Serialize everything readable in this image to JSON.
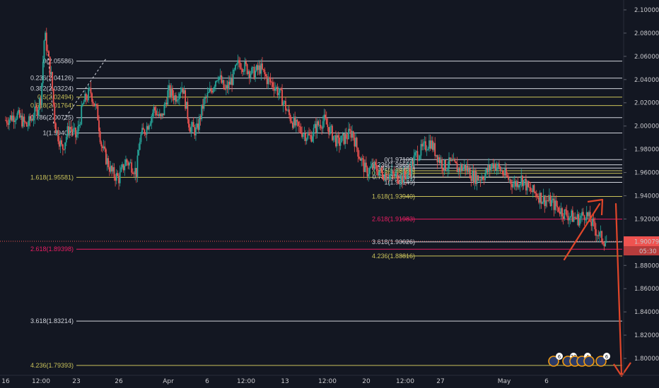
{
  "chart_data": {
    "type": "candlestick",
    "title": "",
    "colors": {
      "background": "#131722",
      "up": "#26a69a",
      "down": "#ef5350",
      "fib_white": "#d1d4dc",
      "fib_yellow": "#c9c25a",
      "fib_red": "#e91e63",
      "arrow": "#e0462a",
      "price_tag": "#ef5350",
      "axis_text": "#c8c8cc"
    },
    "y_axis": {
      "min": 1.79,
      "max": 2.105,
      "ticks": [
        "2.10000",
        "2.08000",
        "2.06000",
        "2.04000",
        "2.02000",
        "2.00000",
        "1.98000",
        "1.96000",
        "1.94000",
        "1.92000",
        "1.90000",
        "1.88000",
        "1.86000",
        "1.84000",
        "1.82000",
        "1.80000"
      ],
      "tick_values": [
        2.1,
        2.08,
        2.06,
        2.04,
        2.02,
        2.0,
        1.98,
        1.96,
        1.94,
        1.92,
        1.9,
        1.88,
        1.86,
        1.84,
        1.82,
        1.8
      ]
    },
    "x_axis": {
      "ticks": [
        "16",
        "12:00",
        "23",
        "26",
        "Apr",
        "6",
        "12:00",
        "13",
        "12:00",
        "20",
        "12:00",
        "27",
        "May",
        "6"
      ],
      "tick_index": [
        0,
        10,
        20,
        32,
        46,
        57,
        68,
        79,
        91,
        102,
        113,
        123,
        141,
        153
      ],
      "num_slots": 160
    },
    "last_price": {
      "label": "1.90079",
      "value": 1.90079,
      "countdown": "05:30"
    },
    "fib_left": [
      {
        "label": "0(2.05586)",
        "value": 2.05586,
        "color": "white"
      },
      {
        "label": "0.236(2.04126)",
        "value": 2.04126,
        "color": "white"
      },
      {
        "label": "0.382(2.03224)",
        "value": 2.03224,
        "color": "white"
      },
      {
        "label": "0.5(2.02494)",
        "value": 2.02494,
        "color": "yellow"
      },
      {
        "label": "0.618(2.01764)",
        "value": 2.01764,
        "color": "yellow"
      },
      {
        "label": "0.786(2.00725)",
        "value": 2.00725,
        "color": "white"
      },
      {
        "label": "1(1.99402)",
        "value": 1.99402,
        "color": "white"
      },
      {
        "label": "1.618(1.95581)",
        "value": 1.95581,
        "color": "yellow"
      },
      {
        "label": "2.618(1.89398)",
        "value": 1.89398,
        "color": "red"
      },
      {
        "label": "3.618(1.83214)",
        "value": 1.83214,
        "color": "white"
      },
      {
        "label": "4.236(1.79393)",
        "value": 1.79393,
        "color": "yellow"
      }
    ],
    "fib_right": [
      {
        "label": "0(1.97109)",
        "value": 1.97109,
        "color": "white"
      },
      {
        "label": "0.236(1.96659)",
        "value": 1.96659,
        "color": "white"
      },
      {
        "label": "0.382(1.96381)",
        "value": 1.96381,
        "color": "white"
      },
      {
        "label": "0.5(1.96156)",
        "value": 1.96156,
        "color": "yellow"
      },
      {
        "label": "0.618(1.95932)",
        "value": 1.95932,
        "color": "yellow"
      },
      {
        "label": "0.786(1.95611)",
        "value": 1.95611,
        "color": "white"
      },
      {
        "label": "1(1.95149)",
        "value": 1.95149,
        "color": "white"
      },
      {
        "label": "1.618(1.93940)",
        "value": 1.9394,
        "color": "yellow"
      },
      {
        "label": "2.618(1.91983)",
        "value": 1.91983,
        "color": "red"
      },
      {
        "label": "3.618(1.90026)",
        "value": 1.90026,
        "color": "white"
      },
      {
        "label": "4.236(1.88816)",
        "value": 1.88816,
        "color": "yellow"
      }
    ],
    "event_badges": [
      "6",
      "23",
      "4",
      "6"
    ],
    "price_path": [
      [
        0,
        2.005
      ],
      [
        3,
        2.01
      ],
      [
        6,
        2.0
      ],
      [
        9,
        2.015
      ],
      [
        10,
        2.025
      ],
      [
        11,
        2.08
      ],
      [
        12,
        2.06
      ],
      [
        13,
        2.04
      ],
      [
        14,
        2.0
      ],
      [
        16,
        1.98
      ],
      [
        18,
        2.0
      ],
      [
        20,
        1.99
      ],
      [
        22,
        2.02
      ],
      [
        24,
        2.03
      ],
      [
        26,
        2.01
      ],
      [
        27,
        1.985
      ],
      [
        28,
        1.975
      ],
      [
        30,
        1.96
      ],
      [
        32,
        1.955
      ],
      [
        34,
        1.97
      ],
      [
        36,
        1.965
      ],
      [
        37,
        1.96
      ],
      [
        38,
        1.99
      ],
      [
        40,
        2.0
      ],
      [
        42,
        2.015
      ],
      [
        44,
        2.005
      ],
      [
        46,
        2.03
      ],
      [
        48,
        2.025
      ],
      [
        50,
        2.035
      ],
      [
        52,
        2.0
      ],
      [
        54,
        1.995
      ],
      [
        56,
        2.02
      ],
      [
        58,
        2.03
      ],
      [
        60,
        2.045
      ],
      [
        62,
        2.03
      ],
      [
        64,
        2.04
      ],
      [
        66,
        2.055
      ],
      [
        68,
        2.05
      ],
      [
        70,
        2.045
      ],
      [
        72,
        2.05
      ],
      [
        74,
        2.04
      ],
      [
        76,
        2.035
      ],
      [
        78,
        2.025
      ],
      [
        80,
        2.01
      ],
      [
        82,
        2.0
      ],
      [
        84,
        1.995
      ],
      [
        86,
        1.99
      ],
      [
        88,
        2.0
      ],
      [
        90,
        2.005
      ],
      [
        92,
        1.995
      ],
      [
        94,
        1.985
      ],
      [
        96,
        1.99
      ],
      [
        98,
        1.995
      ],
      [
        100,
        1.975
      ],
      [
        102,
        1.96
      ],
      [
        104,
        1.965
      ],
      [
        106,
        1.96
      ],
      [
        108,
        1.958
      ],
      [
        110,
        1.957
      ],
      [
        112,
        1.955
      ],
      [
        114,
        1.96
      ],
      [
        116,
        1.975
      ],
      [
        118,
        1.98
      ],
      [
        120,
        1.987
      ],
      [
        122,
        1.975
      ],
      [
        124,
        1.965
      ],
      [
        126,
        1.968
      ],
      [
        128,
        1.963
      ],
      [
        130,
        1.965
      ],
      [
        132,
        1.957
      ],
      [
        134,
        1.955
      ],
      [
        136,
        1.96
      ],
      [
        138,
        1.968
      ],
      [
        140,
        1.962
      ],
      [
        142,
        1.955
      ],
      [
        144,
        1.95
      ],
      [
        146,
        1.955
      ],
      [
        148,
        1.945
      ],
      [
        150,
        1.942
      ],
      [
        152,
        1.937
      ],
      [
        154,
        1.935
      ],
      [
        156,
        1.93
      ],
      [
        158,
        1.925
      ],
      [
        160,
        1.922
      ],
      [
        162,
        1.92
      ],
      [
        164,
        1.925
      ],
      [
        166,
        1.915
      ],
      [
        168,
        1.905
      ],
      [
        170,
        1.9
      ]
    ]
  }
}
